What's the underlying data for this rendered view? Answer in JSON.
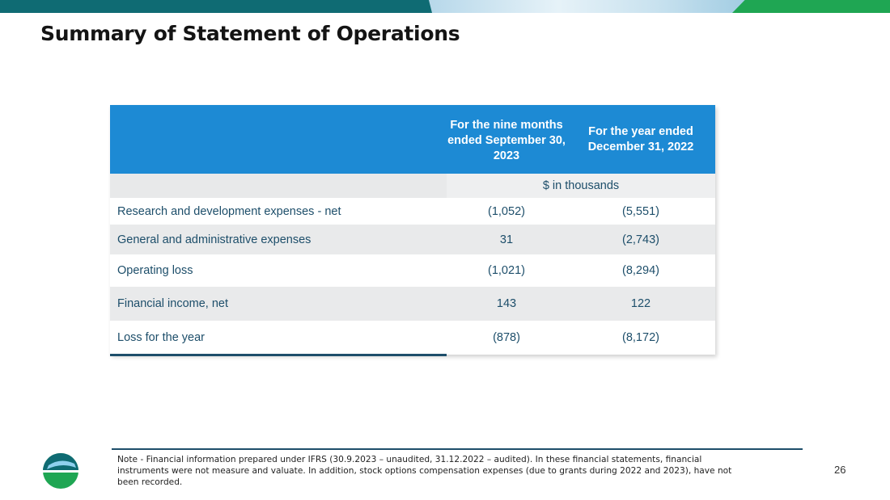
{
  "slide": {
    "title": "Summary of Statement of Operations",
    "page_number": "26",
    "note": "Note - Financial information prepared under IFRS (30.9.2023 – unaudited, 31.12.2022 – audited). In these financial statements, financial instruments were not measure and valuate. In addition, stock options compensation expenses (due to grants during 2022 and 2023), have not been recorded."
  },
  "table": {
    "col1_header": "For the nine months ended September 30, 2023",
    "col2_header": "For the year ended December 31, 2022",
    "units": "$ in thousands",
    "rows": [
      {
        "label": "Research and development expenses - net",
        "v1": "(1,052)",
        "v2": "(5,551)"
      },
      {
        "label": "General and administrative expenses",
        "v1": "31",
        "v2": "(2,743)"
      },
      {
        "label": "Operating loss",
        "v1": "(1,021)",
        "v2": "(8,294)"
      },
      {
        "label": "Financial income, net",
        "v1": "143",
        "v2": "122"
      },
      {
        "label": "Loss for the year",
        "v1": "(878)",
        "v2": "(8,172)"
      }
    ]
  },
  "colors": {
    "header_blue": "#1d8ad4",
    "teal": "#0f6b73",
    "green": "#1fa653",
    "text_navy": "#1d4e6a"
  }
}
